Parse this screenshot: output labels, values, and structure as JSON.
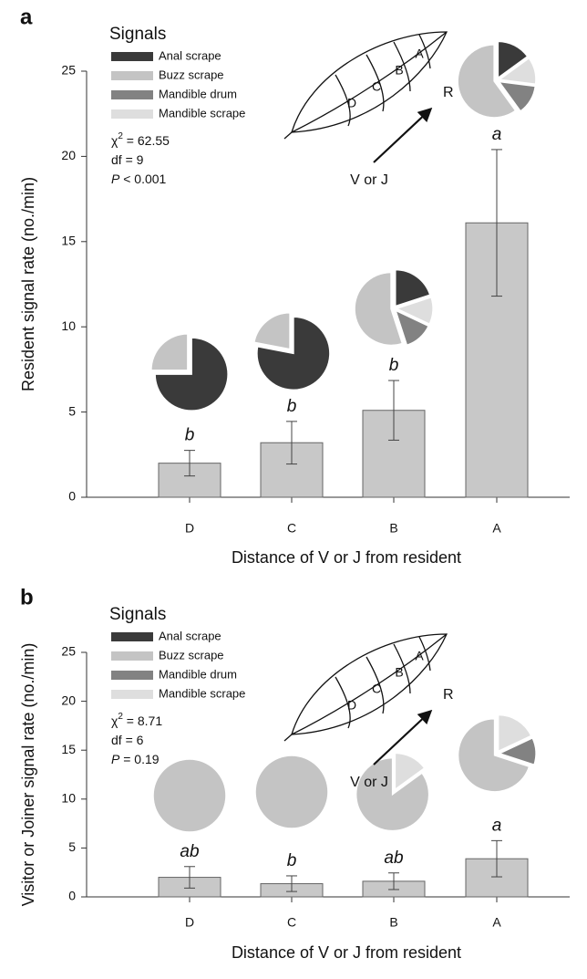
{
  "chart_data": [
    {
      "type": "bar",
      "panel": "a",
      "y_label": "Resident signal rate (no./min)",
      "x_label": "Distance of V or J from resident",
      "categories": [
        "D",
        "C",
        "B",
        "A"
      ],
      "values": [
        2.0,
        3.2,
        5.1,
        16.1
      ],
      "errors": [
        0.75,
        1.25,
        1.75,
        4.3
      ],
      "significance": [
        "b",
        "b",
        "b",
        "a"
      ],
      "color": "#c8c8c8",
      "ylim": [
        0,
        25
      ],
      "yticks": [
        0,
        5,
        10,
        15,
        20,
        25
      ],
      "legend": {
        "title": "Signals",
        "series": [
          {
            "name": "Anal scrape",
            "color": "#3a3a3a"
          },
          {
            "name": "Buzz scrape",
            "color": "#c4c4c4"
          },
          {
            "name": "Mandible drum",
            "color": "#828282"
          },
          {
            "name": "Mandible scrape",
            "color": "#dedede"
          }
        ]
      },
      "pie_values": [
        [
          75,
          25,
          0,
          0
        ],
        [
          78,
          22,
          0,
          0
        ],
        [
          20,
          55,
          13,
          12
        ],
        [
          15,
          60,
          13,
          12
        ]
      ],
      "stats": [
        {
          "symbol": "χ",
          "exponent": "2",
          "text": " = 62.55"
        },
        {
          "text": "df = 9"
        },
        {
          "symbol": "P",
          "italic": true,
          "text": " < 0.001"
        }
      ],
      "diagram": {
        "sections": [
          "A",
          "B",
          "C",
          "D"
        ],
        "arrow_end": "R",
        "arrow_start": "V or J"
      }
    },
    {
      "type": "bar",
      "panel": "b",
      "y_label": "Visitor or Joiner signal rate (no./min)",
      "x_label": "Distance of V or J from resident",
      "categories": [
        "D",
        "C",
        "B",
        "A"
      ],
      "values": [
        2.0,
        1.35,
        1.6,
        3.9
      ],
      "errors": [
        1.1,
        0.8,
        0.85,
        1.85
      ],
      "significance": [
        "ab",
        "b",
        "ab",
        "a"
      ],
      "color": "#c8c8c8",
      "ylim": [
        0,
        25
      ],
      "yticks": [
        0,
        5,
        10,
        15,
        20,
        25
      ],
      "legend": {
        "title": "Signals",
        "series": [
          {
            "name": "Anal scrape",
            "color": "#3a3a3a"
          },
          {
            "name": "Buzz scrape",
            "color": "#c4c4c4"
          },
          {
            "name": "Mandible drum",
            "color": "#828282"
          },
          {
            "name": "Mandible scrape",
            "color": "#dedede"
          }
        ]
      },
      "pie_values": [
        [
          0,
          100,
          0,
          0
        ],
        [
          0,
          100,
          0,
          0
        ],
        [
          0,
          85,
          0,
          15
        ],
        [
          0,
          70,
          12,
          18
        ]
      ],
      "stats": [
        {
          "symbol": "χ",
          "exponent": "2",
          "text": " = 8.71"
        },
        {
          "text": "df = 6"
        },
        {
          "symbol": "P",
          "italic": true,
          "text": " = 0.19"
        }
      ],
      "diagram": {
        "sections": [
          "A",
          "B",
          "C",
          "D"
        ],
        "arrow_end": "R",
        "arrow_start": "V or J"
      }
    }
  ]
}
